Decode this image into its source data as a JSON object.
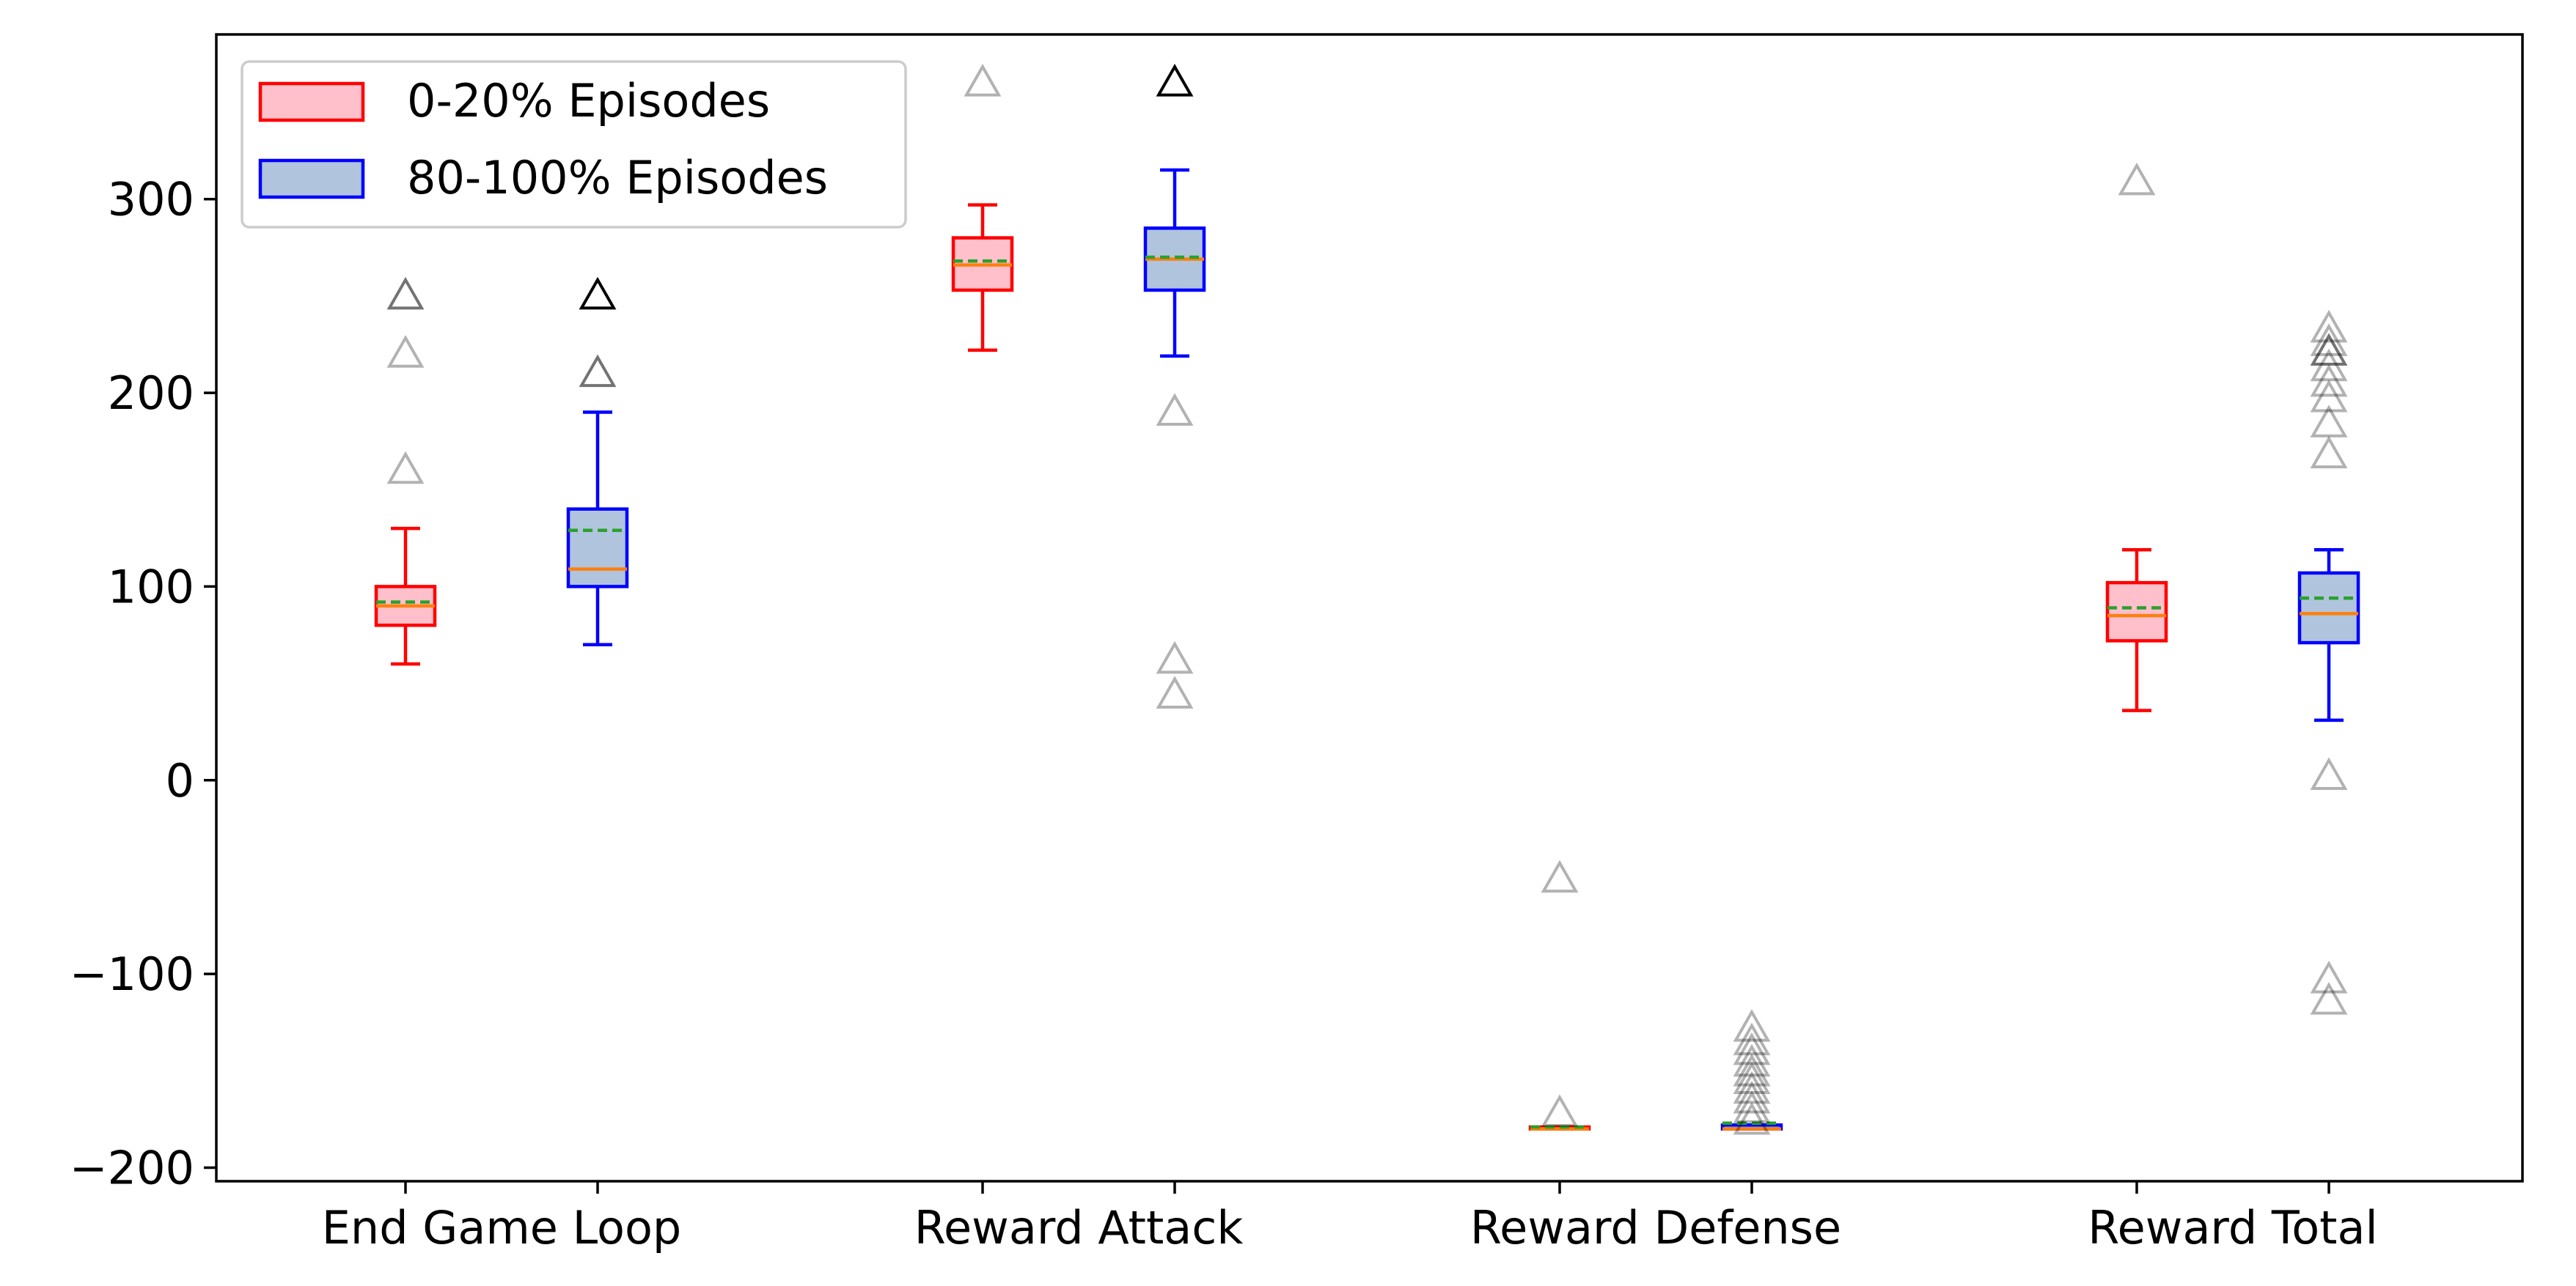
{
  "chart_data": {
    "type": "box",
    "categories": [
      "End Game Loop",
      "Reward Attack",
      "Reward Defense",
      "Reward Total"
    ],
    "ylim": [
      -207,
      385
    ],
    "yticks": [
      {
        "value": 300,
        "label": "300"
      },
      {
        "value": 200,
        "label": "200"
      },
      {
        "value": 100,
        "label": "100"
      },
      {
        "value": 0,
        "label": "0"
      },
      {
        "value": -100,
        "label": "−100"
      },
      {
        "value": -200,
        "label": "−200"
      }
    ],
    "legend": {
      "placement": "upper-left"
    },
    "series": [
      {
        "name": "0-20% Episodes",
        "edge_color": "#ff0000",
        "fill_color": "#ffc0cb",
        "boxes": [
          {
            "q1": 80,
            "median": 90,
            "mean": 92,
            "q3": 100,
            "whisker_low": 60,
            "whisker_high": 130,
            "outliers": [
              {
                "y": 250,
                "alpha": 0.55
              },
              {
                "y": 220,
                "alpha": 0.3
              },
              {
                "y": 160,
                "alpha": 0.3
              }
            ]
          },
          {
            "q1": 253,
            "median": 266,
            "mean": 268,
            "q3": 280,
            "whisker_low": 222,
            "whisker_high": 297,
            "outliers": [
              {
                "y": 360,
                "alpha": 0.3
              }
            ]
          },
          {
            "q1": -180,
            "median": -180,
            "mean": -179,
            "q3": -179,
            "whisker_low": -180,
            "whisker_high": -179,
            "outliers": [
              {
                "y": -51,
                "alpha": 0.3
              },
              {
                "y": -172,
                "alpha": 0.3
              }
            ]
          },
          {
            "q1": 72,
            "median": 85,
            "mean": 89,
            "q3": 102,
            "whisker_low": 36,
            "whisker_high": 119,
            "outliers": [
              {
                "y": 309,
                "alpha": 0.3
              }
            ]
          }
        ]
      },
      {
        "name": "80-100% Episodes",
        "edge_color": "#0000ff",
        "fill_color": "#b0c4de",
        "boxes": [
          {
            "q1": 100,
            "median": 109,
            "mean": 129,
            "q3": 140,
            "whisker_low": 70,
            "whisker_high": 190,
            "outliers": [
              {
                "y": 250,
                "alpha": 1.0
              },
              {
                "y": 210,
                "alpha": 0.55
              }
            ]
          },
          {
            "q1": 253,
            "median": 269,
            "mean": 270,
            "q3": 285,
            "whisker_low": 219,
            "whisker_high": 315,
            "outliers": [
              {
                "y": 360,
                "alpha": 1.0
              },
              {
                "y": 190,
                "alpha": 0.3
              },
              {
                "y": 62,
                "alpha": 0.3
              },
              {
                "y": 44,
                "alpha": 0.3
              }
            ]
          },
          {
            "q1": -180,
            "median": -180,
            "mean": -177,
            "q3": -178,
            "whisker_low": -180,
            "whisker_high": -178,
            "outliers": [
              {
                "y": -128,
                "alpha": 0.3
              },
              {
                "y": -135,
                "alpha": 0.3
              },
              {
                "y": -140,
                "alpha": 0.3
              },
              {
                "y": -146,
                "alpha": 0.3
              },
              {
                "y": -151,
                "alpha": 0.3
              },
              {
                "y": -155,
                "alpha": 0.3
              },
              {
                "y": -160,
                "alpha": 0.3
              },
              {
                "y": -165,
                "alpha": 0.3
              },
              {
                "y": -170,
                "alpha": 0.3
              },
              {
                "y": -176,
                "alpha": 0.3
              }
            ]
          },
          {
            "q1": 71,
            "median": 86,
            "mean": 94,
            "q3": 107,
            "whisker_low": 31,
            "whisker_high": 119,
            "outliers": [
              {
                "y": 233,
                "alpha": 0.3
              },
              {
                "y": 226,
                "alpha": 0.3
              },
              {
                "y": 221,
                "alpha": 0.55
              },
              {
                "y": 213,
                "alpha": 0.3
              },
              {
                "y": 205,
                "alpha": 0.3
              },
              {
                "y": 197,
                "alpha": 0.3
              },
              {
                "y": 184,
                "alpha": 0.3
              },
              {
                "y": 168,
                "alpha": 0.3
              },
              {
                "y": 2,
                "alpha": 0.3
              },
              {
                "y": -103,
                "alpha": 0.3
              },
              {
                "y": -114,
                "alpha": 0.3
              }
            ]
          }
        ]
      }
    ],
    "median_color": "#ff7f0e",
    "mean_color": "#2ca02c",
    "outlier_marker": "triangle"
  }
}
